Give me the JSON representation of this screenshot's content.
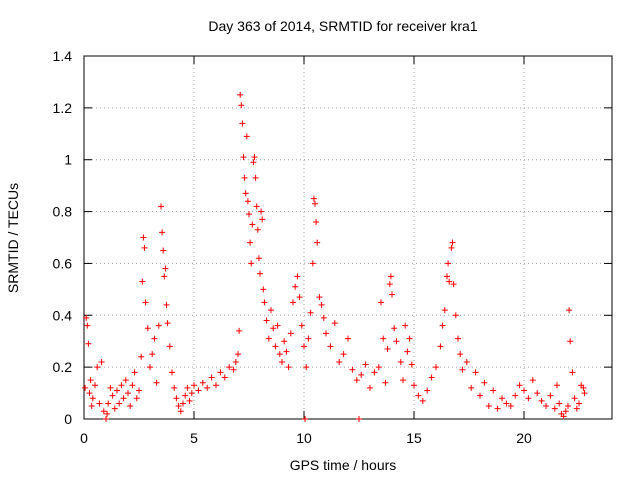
{
  "chart_data": {
    "type": "scatter",
    "title": "Day 363 of 2014, SRMTID for receiver kra1",
    "xlabel": "GPS time / hours",
    "ylabel": "SRMTID / TECUs",
    "xlim": [
      0,
      24
    ],
    "ylim": [
      0,
      1.4
    ],
    "xticks": [
      0,
      5,
      10,
      15,
      20
    ],
    "yticks": [
      0,
      0.2,
      0.4,
      0.6,
      0.8,
      1.0,
      1.2,
      1.4
    ],
    "xtick_labels": [
      "0",
      "5",
      "10",
      "15",
      "20"
    ],
    "ytick_labels": [
      "0",
      "0.2",
      "0.4",
      "0.6",
      "0.8",
      "1",
      "1.2",
      "1.4"
    ],
    "grid": true,
    "marker": "+",
    "color": "#ff0000",
    "series": [
      {
        "name": "SRMTID",
        "points": [
          [
            0.05,
            0.12
          ],
          [
            0.1,
            0.39
          ],
          [
            0.15,
            0.36
          ],
          [
            0.2,
            0.29
          ],
          [
            0.25,
            0.1
          ],
          [
            0.3,
            0.15
          ],
          [
            0.35,
            0.05
          ],
          [
            0.4,
            0.08
          ],
          [
            0.5,
            0.13
          ],
          [
            0.6,
            0.2
          ],
          [
            0.7,
            0.06
          ],
          [
            0.8,
            0.22
          ],
          [
            0.9,
            0.03
          ],
          [
            1.0,
            0.0
          ],
          [
            1.05,
            0.02
          ],
          [
            1.1,
            0.06
          ],
          [
            1.2,
            0.12
          ],
          [
            1.3,
            0.09
          ],
          [
            1.4,
            0.04
          ],
          [
            1.5,
            0.11
          ],
          [
            1.6,
            0.06
          ],
          [
            1.7,
            0.13
          ],
          [
            1.8,
            0.08
          ],
          [
            1.9,
            0.15
          ],
          [
            2.0,
            0.1
          ],
          [
            2.1,
            0.05
          ],
          [
            2.2,
            0.13
          ],
          [
            2.3,
            0.18
          ],
          [
            2.4,
            0.08
          ],
          [
            2.5,
            0.11
          ],
          [
            2.6,
            0.24
          ],
          [
            2.65,
            0.53
          ],
          [
            2.7,
            0.7
          ],
          [
            2.75,
            0.66
          ],
          [
            2.8,
            0.45
          ],
          [
            2.9,
            0.35
          ],
          [
            3.0,
            0.2
          ],
          [
            3.1,
            0.25
          ],
          [
            3.2,
            0.31
          ],
          [
            3.3,
            0.14
          ],
          [
            3.4,
            0.36
          ],
          [
            3.5,
            0.82
          ],
          [
            3.55,
            0.72
          ],
          [
            3.6,
            0.65
          ],
          [
            3.65,
            0.55
          ],
          [
            3.7,
            0.58
          ],
          [
            3.75,
            0.44
          ],
          [
            3.8,
            0.37
          ],
          [
            3.9,
            0.28
          ],
          [
            4.0,
            0.18
          ],
          [
            4.1,
            0.12
          ],
          [
            4.2,
            0.08
          ],
          [
            4.3,
            0.05
          ],
          [
            4.4,
            0.03
          ],
          [
            4.5,
            0.06
          ],
          [
            4.6,
            0.09
          ],
          [
            4.7,
            0.12
          ],
          [
            4.8,
            0.07
          ],
          [
            4.9,
            0.1
          ],
          [
            5.0,
            0.13
          ],
          [
            5.2,
            0.11
          ],
          [
            5.4,
            0.14
          ],
          [
            5.6,
            0.12
          ],
          [
            5.8,
            0.16
          ],
          [
            6.0,
            0.13
          ],
          [
            6.2,
            0.18
          ],
          [
            6.4,
            0.16
          ],
          [
            6.6,
            0.2
          ],
          [
            6.8,
            0.19
          ],
          [
            6.9,
            0.22
          ],
          [
            7.0,
            0.25
          ],
          [
            7.05,
            0.34
          ],
          [
            7.1,
            1.25
          ],
          [
            7.15,
            1.21
          ],
          [
            7.2,
            1.14
          ],
          [
            7.25,
            1.01
          ],
          [
            7.3,
            0.93
          ],
          [
            7.35,
            0.87
          ],
          [
            7.4,
            1.09
          ],
          [
            7.45,
            0.84
          ],
          [
            7.5,
            0.79
          ],
          [
            7.55,
            0.68
          ],
          [
            7.6,
            0.6
          ],
          [
            7.65,
            0.75
          ],
          [
            7.7,
            0.99
          ],
          [
            7.75,
            1.01
          ],
          [
            7.8,
            0.93
          ],
          [
            7.85,
            0.82
          ],
          [
            7.9,
            0.73
          ],
          [
            7.95,
            0.62
          ],
          [
            8.0,
            0.56
          ],
          [
            8.05,
            0.8
          ],
          [
            8.1,
            0.77
          ],
          [
            8.15,
            0.5
          ],
          [
            8.2,
            0.45
          ],
          [
            8.3,
            0.38
          ],
          [
            8.4,
            0.31
          ],
          [
            8.5,
            0.42
          ],
          [
            8.6,
            0.35
          ],
          [
            8.7,
            0.28
          ],
          [
            8.8,
            0.36
          ],
          [
            8.9,
            0.25
          ],
          [
            9.0,
            0.22
          ],
          [
            9.1,
            0.3
          ],
          [
            9.2,
            0.26
          ],
          [
            9.3,
            0.2
          ],
          [
            9.4,
            0.33
          ],
          [
            9.5,
            0.45
          ],
          [
            9.6,
            0.51
          ],
          [
            9.7,
            0.55
          ],
          [
            9.8,
            0.47
          ],
          [
            9.9,
            0.36
          ],
          [
            10.0,
            0.28
          ],
          [
            10.05,
            0.0
          ],
          [
            10.1,
            0.2
          ],
          [
            10.2,
            0.31
          ],
          [
            10.3,
            0.41
          ],
          [
            10.4,
            0.6
          ],
          [
            10.45,
            0.85
          ],
          [
            10.5,
            0.83
          ],
          [
            10.55,
            0.76
          ],
          [
            10.6,
            0.68
          ],
          [
            10.7,
            0.47
          ],
          [
            10.8,
            0.44
          ],
          [
            10.9,
            0.39
          ],
          [
            11.0,
            0.33
          ],
          [
            11.2,
            0.28
          ],
          [
            11.4,
            0.37
          ],
          [
            11.6,
            0.22
          ],
          [
            11.8,
            0.25
          ],
          [
            12.0,
            0.31
          ],
          [
            12.2,
            0.19
          ],
          [
            12.4,
            0.15
          ],
          [
            12.5,
            0.0
          ],
          [
            12.6,
            0.17
          ],
          [
            12.8,
            0.21
          ],
          [
            13.0,
            0.12
          ],
          [
            13.2,
            0.18
          ],
          [
            13.4,
            0.2
          ],
          [
            13.5,
            0.45
          ],
          [
            13.6,
            0.31
          ],
          [
            13.7,
            0.14
          ],
          [
            13.8,
            0.27
          ],
          [
            13.9,
            0.52
          ],
          [
            13.95,
            0.55
          ],
          [
            14.0,
            0.48
          ],
          [
            14.1,
            0.35
          ],
          [
            14.2,
            0.3
          ],
          [
            14.4,
            0.22
          ],
          [
            14.5,
            0.15
          ],
          [
            14.6,
            0.36
          ],
          [
            14.7,
            0.26
          ],
          [
            14.8,
            0.31
          ],
          [
            14.9,
            0.21
          ],
          [
            15.0,
            0.13
          ],
          [
            15.2,
            0.09
          ],
          [
            15.4,
            0.07
          ],
          [
            15.6,
            0.11
          ],
          [
            15.8,
            0.16
          ],
          [
            16.0,
            0.2
          ],
          [
            16.2,
            0.28
          ],
          [
            16.3,
            0.36
          ],
          [
            16.4,
            0.42
          ],
          [
            16.5,
            0.55
          ],
          [
            16.55,
            0.6
          ],
          [
            16.6,
            0.53
          ],
          [
            16.7,
            0.66
          ],
          [
            16.75,
            0.68
          ],
          [
            16.8,
            0.52
          ],
          [
            16.9,
            0.4
          ],
          [
            17.0,
            0.31
          ],
          [
            17.1,
            0.25
          ],
          [
            17.2,
            0.19
          ],
          [
            17.4,
            0.22
          ],
          [
            17.6,
            0.12
          ],
          [
            17.8,
            0.18
          ],
          [
            18.0,
            0.09
          ],
          [
            18.2,
            0.14
          ],
          [
            18.4,
            0.05
          ],
          [
            18.6,
            0.11
          ],
          [
            18.8,
            0.04
          ],
          [
            19.0,
            0.08
          ],
          [
            19.2,
            0.06
          ],
          [
            19.4,
            0.05
          ],
          [
            19.6,
            0.09
          ],
          [
            19.8,
            0.13
          ],
          [
            20.0,
            0.11
          ],
          [
            20.2,
            0.08
          ],
          [
            20.4,
            0.15
          ],
          [
            20.6,
            0.1
          ],
          [
            20.8,
            0.07
          ],
          [
            21.0,
            0.05
          ],
          [
            21.2,
            0.09
          ],
          [
            21.4,
            0.04
          ],
          [
            21.5,
            0.13
          ],
          [
            21.6,
            0.06
          ],
          [
            21.7,
            0.02
          ],
          [
            21.8,
            0.01
          ],
          [
            21.9,
            0.03
          ],
          [
            22.0,
            0.05
          ],
          [
            22.05,
            0.42
          ],
          [
            22.1,
            0.3
          ],
          [
            22.2,
            0.18
          ],
          [
            22.3,
            0.08
          ],
          [
            22.4,
            0.04
          ],
          [
            22.5,
            0.06
          ],
          [
            22.6,
            0.13
          ],
          [
            22.7,
            0.12
          ],
          [
            22.75,
            0.1
          ]
        ]
      }
    ]
  }
}
